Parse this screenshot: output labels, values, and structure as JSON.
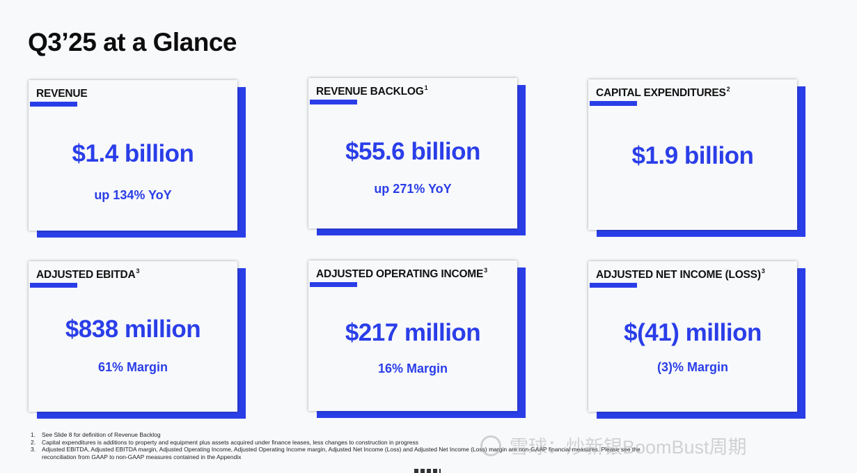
{
  "title": "Q3’25 at a Glance",
  "cards": [
    {
      "label": "REVENUE",
      "sup": "",
      "value": "$1.4 billion",
      "sub": "up 134% YoY"
    },
    {
      "label": "REVENUE BACKLOG",
      "sup": "1",
      "value": "$55.6 billion",
      "sub": "up 271% YoY"
    },
    {
      "label": "CAPITAL EXPENDITURES",
      "sup": "2",
      "value": "$1.9 billion",
      "sub": ""
    },
    {
      "label": "ADJUSTED EBITDA",
      "sup": "3",
      "value": "$838 million",
      "sub": "61% Margin"
    },
    {
      "label": "ADJUSTED OPERATING INCOME",
      "sup": "3",
      "value": "$217 million",
      "sub": "16% Margin"
    },
    {
      "label": "ADJUSTED NET INCOME (LOSS)",
      "sup": "3",
      "value": "$(41) million",
      "sub": "(3)% Margin"
    }
  ],
  "footnotes": [
    {
      "num": "1.",
      "text": "See Slide 8 for definition of Revenue Backlog"
    },
    {
      "num": "2.",
      "text": "Capital expenditures is additions to property and equipment plus assets acquired under finance leases, less changes to construction in progress"
    },
    {
      "num": "3.",
      "text": "Adjusted EBITDA, Adjusted EBITDA margin, Adjusted Operating Income, Adjusted Operating Income margin, Adjusted Net Income (Loss) and Adjusted Net Income (Loss) margin are non-GAAP financial measures. Please see the reconciliation from GAAP to non-GAAP measures contained in the Appendix"
    }
  ],
  "watermark": "雪球：炒新银BoomBust周期",
  "colors": {
    "accent": "#2a3ee8",
    "background": "#f8f9fb"
  }
}
